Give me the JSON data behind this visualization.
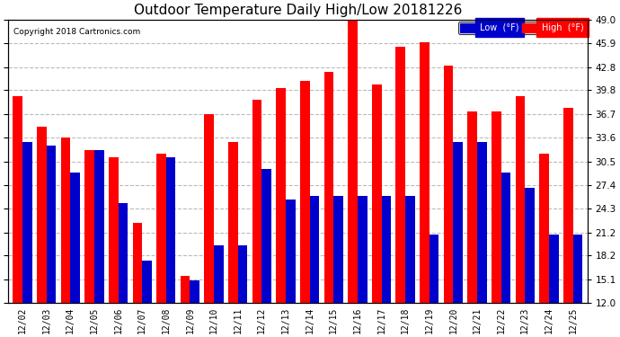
{
  "title": "Outdoor Temperature Daily High/Low 20181226",
  "copyright": "Copyright 2018 Cartronics.com",
  "legend_low": "Low  (°F)",
  "legend_high": "High  (°F)",
  "ylabel_right_ticks": [
    12.0,
    15.1,
    18.2,
    21.2,
    24.3,
    27.4,
    30.5,
    33.6,
    36.7,
    39.8,
    42.8,
    45.9,
    49.0
  ],
  "dates": [
    "12/02",
    "12/03",
    "12/04",
    "12/05",
    "12/06",
    "12/07",
    "12/08",
    "12/09",
    "12/10",
    "12/11",
    "12/12",
    "12/13",
    "12/14",
    "12/15",
    "12/16",
    "12/17",
    "12/18",
    "12/19",
    "12/20",
    "12/21",
    "12/22",
    "12/23",
    "12/24",
    "12/25"
  ],
  "high": [
    39.0,
    35.0,
    33.6,
    32.0,
    31.0,
    22.5,
    31.5,
    15.5,
    36.7,
    33.0,
    38.5,
    40.0,
    41.0,
    42.2,
    48.8,
    40.5,
    45.5,
    46.0,
    43.0,
    37.0,
    37.0,
    39.0,
    31.5,
    37.5
  ],
  "low": [
    33.0,
    32.5,
    29.0,
    32.0,
    25.0,
    17.5,
    31.0,
    15.0,
    19.5,
    19.5,
    29.5,
    25.5,
    26.0,
    26.0,
    26.0,
    26.0,
    26.0,
    21.0,
    33.0,
    33.0,
    29.0,
    27.0,
    21.0,
    21.0
  ],
  "bar_color_high": "#ff0000",
  "bar_color_low": "#0000cc",
  "background_color": "#ffffff",
  "plot_bg_color": "#ffffff",
  "grid_color": "#bbbbbb",
  "title_fontsize": 11,
  "ylim": [
    12.0,
    49.0
  ],
  "ybase": 12.0
}
